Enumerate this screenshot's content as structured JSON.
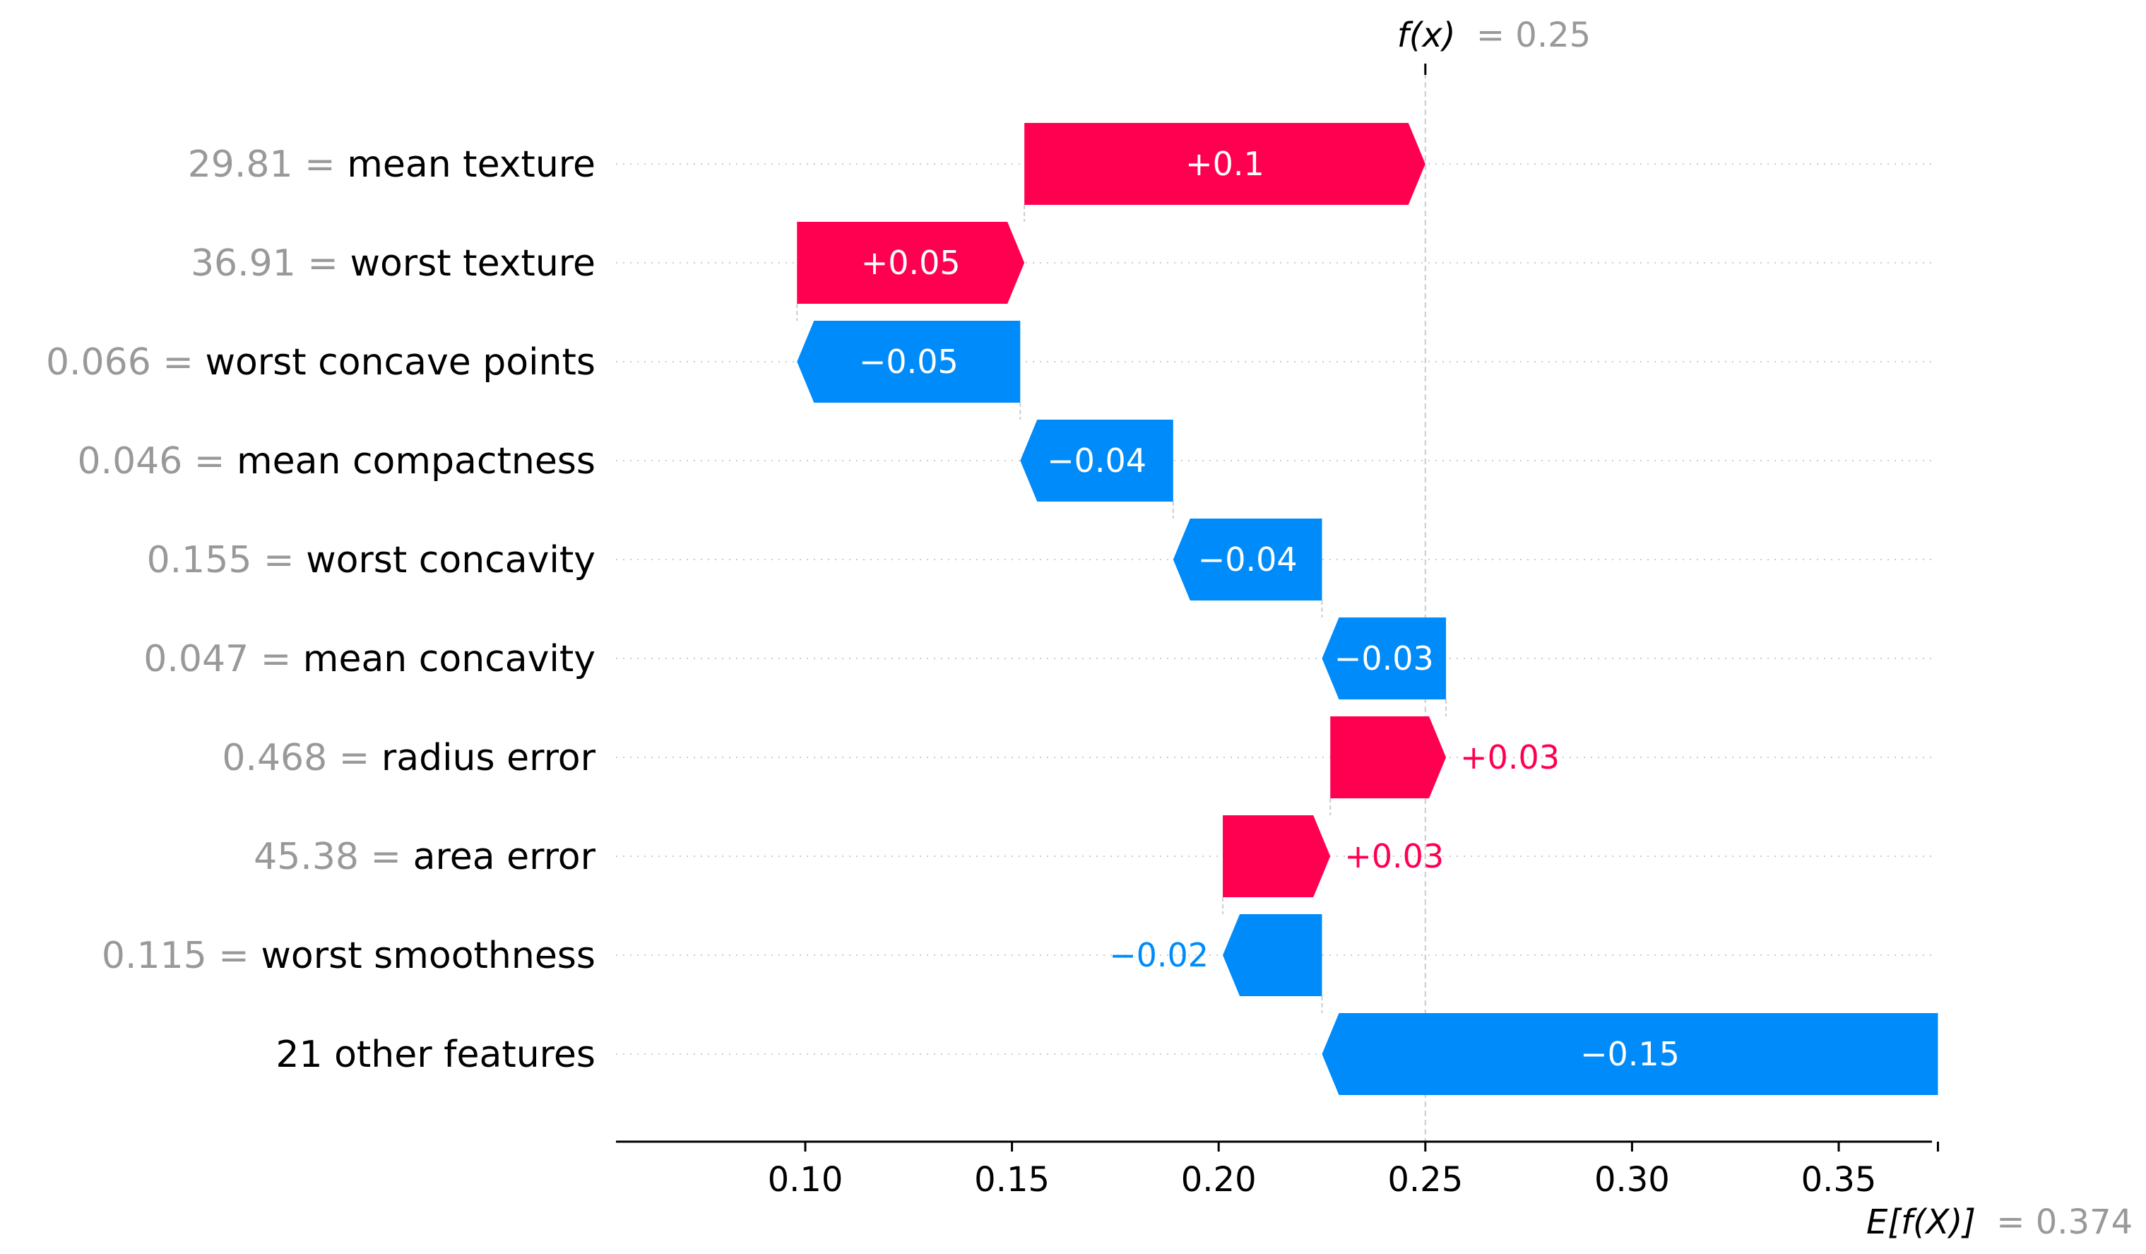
{
  "chart_data": {
    "type": "bar",
    "subtype": "shap-waterfall",
    "base_value": 0.374,
    "output_value": 0.25,
    "base_label": "E[f(X)]",
    "base_value_text": "= 0.374",
    "output_label": "f(x)",
    "output_value_text": "= 0.25",
    "xlim": [
      0.052,
      0.375
    ],
    "x_ticks": [
      0.1,
      0.15,
      0.2,
      0.25,
      0.3,
      0.35
    ],
    "x_tick_labels": [
      "0.10",
      "0.15",
      "0.20",
      "0.25",
      "0.30",
      "0.35"
    ],
    "grid": true,
    "features": [
      {
        "value": "29.81",
        "name": "mean texture",
        "shap": 0.097,
        "label": "+0.1",
        "start": 0.153,
        "end": 0.25
      },
      {
        "value": "36.91",
        "name": "worst texture",
        "shap": 0.055,
        "label": "+0.05",
        "start": 0.098,
        "end": 0.153
      },
      {
        "value": "0.066",
        "name": "worst concave points",
        "shap": -0.054,
        "label": "−0.05",
        "start": 0.152,
        "end": 0.098
      },
      {
        "value": "0.046",
        "name": "mean compactness",
        "shap": -0.037,
        "label": "−0.04",
        "start": 0.189,
        "end": 0.152
      },
      {
        "value": "0.155",
        "name": "worst concavity",
        "shap": -0.036,
        "label": "−0.04",
        "start": 0.225,
        "end": 0.189
      },
      {
        "value": "0.047",
        "name": "mean concavity",
        "shap": -0.03,
        "label": "−0.03",
        "start": 0.255,
        "end": 0.225
      },
      {
        "value": "0.468",
        "name": "radius error",
        "shap": 0.028,
        "label": "+0.03",
        "start": 0.227,
        "end": 0.255
      },
      {
        "value": "45.38",
        "name": "area error",
        "shap": 0.026,
        "label": "+0.03",
        "start": 0.201,
        "end": 0.227
      },
      {
        "value": "0.115",
        "name": "worst smoothness",
        "shap": -0.024,
        "label": "−0.02",
        "start": 0.225,
        "end": 0.201
      },
      {
        "value": "",
        "name": "21 other features",
        "shap": -0.149,
        "label": "−0.15",
        "start": 0.374,
        "end": 0.225
      }
    ],
    "colors": {
      "positive": "#ff0051",
      "negative": "#008bfb",
      "grid": "#cccccc",
      "muted": "#999999",
      "text": "#000000"
    }
  }
}
